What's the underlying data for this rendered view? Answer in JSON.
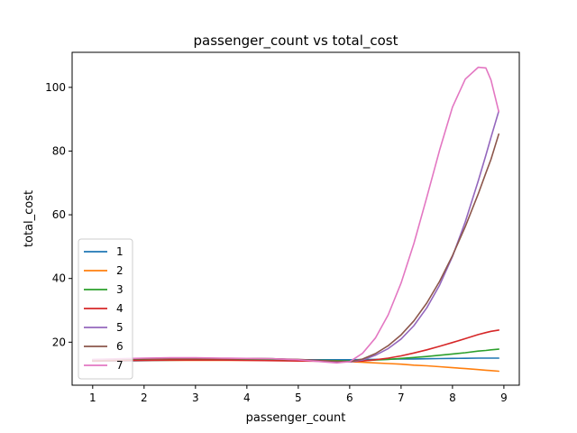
{
  "chart_data": {
    "type": "line",
    "title": "passenger_count vs total_cost",
    "xlabel": "passenger_count",
    "ylabel": "total_cost",
    "xlim": [
      0.6,
      9.3
    ],
    "ylim": [
      6.5,
      111
    ],
    "xticks": [
      1,
      2,
      3,
      4,
      5,
      6,
      7,
      8,
      9
    ],
    "yticks": [
      20,
      40,
      60,
      80,
      100
    ],
    "grid": false,
    "legend_position": "lower-left",
    "x": [
      1.0,
      1.5,
      2.0,
      2.5,
      3.0,
      3.5,
      4.0,
      4.5,
      5.0,
      5.5,
      5.75,
      6.0,
      6.25,
      6.5,
      6.75,
      7.0,
      7.25,
      7.5,
      7.75,
      8.0,
      8.25,
      8.5,
      8.65,
      8.75,
      8.9
    ],
    "series": [
      {
        "name": "1",
        "color": "#1f77b4",
        "values": [
          14.0,
          14.1,
          14.2,
          14.3,
          14.4,
          14.45,
          14.5,
          14.5,
          14.5,
          14.5,
          14.5,
          14.5,
          14.55,
          14.6,
          14.65,
          14.7,
          14.75,
          14.8,
          14.85,
          14.9,
          14.95,
          15.0,
          15.0,
          15.0,
          15.0
        ]
      },
      {
        "name": "2",
        "color": "#ff7f0e",
        "values": [
          14.3,
          14.3,
          14.3,
          14.3,
          14.3,
          14.3,
          14.3,
          14.3,
          14.2,
          14.1,
          14.0,
          13.9,
          13.7,
          13.5,
          13.3,
          13.1,
          12.8,
          12.6,
          12.3,
          12.0,
          11.7,
          11.4,
          11.2,
          11.1,
          10.9
        ]
      },
      {
        "name": "3",
        "color": "#2ca02c",
        "values": [
          14.2,
          14.3,
          14.4,
          14.5,
          14.5,
          14.5,
          14.5,
          14.5,
          14.4,
          14.3,
          14.2,
          14.1,
          14.2,
          14.4,
          14.6,
          14.9,
          15.2,
          15.5,
          15.9,
          16.3,
          16.7,
          17.2,
          17.4,
          17.6,
          17.8
        ]
      },
      {
        "name": "4",
        "color": "#d62728",
        "values": [
          14.1,
          14.2,
          14.3,
          14.4,
          14.4,
          14.4,
          14.3,
          14.2,
          14.1,
          14.0,
          13.9,
          13.9,
          14.1,
          14.5,
          15.0,
          15.7,
          16.6,
          17.6,
          18.7,
          19.9,
          21.1,
          22.4,
          23.0,
          23.4,
          23.8
        ]
      },
      {
        "name": "5",
        "color": "#9467bd",
        "values": [
          14.5,
          14.7,
          14.9,
          15.0,
          15.0,
          14.9,
          14.9,
          14.8,
          14.5,
          14.0,
          13.8,
          13.8,
          14.4,
          15.9,
          18.0,
          21.0,
          25.2,
          30.8,
          37.9,
          46.9,
          57.8,
          70.6,
          78.7,
          84.3,
          92.5
        ]
      },
      {
        "name": "6",
        "color": "#8c564b",
        "values": [
          14.4,
          14.6,
          14.8,
          14.9,
          14.9,
          14.9,
          14.9,
          14.8,
          14.6,
          14.2,
          14.0,
          13.9,
          14.7,
          16.4,
          18.9,
          22.3,
          26.7,
          32.3,
          39.1,
          47.2,
          56.3,
          66.5,
          73.1,
          77.4,
          85.3
        ]
      },
      {
        "name": "7",
        "color": "#e377c2",
        "values": [
          14.6,
          14.8,
          15.0,
          15.1,
          15.1,
          15.0,
          14.9,
          14.8,
          14.5,
          13.8,
          13.5,
          13.9,
          16.5,
          21.3,
          28.6,
          38.6,
          51.0,
          65.5,
          80.3,
          93.8,
          102.6,
          106.3,
          106.1,
          102.3,
          92.4
        ]
      }
    ]
  }
}
